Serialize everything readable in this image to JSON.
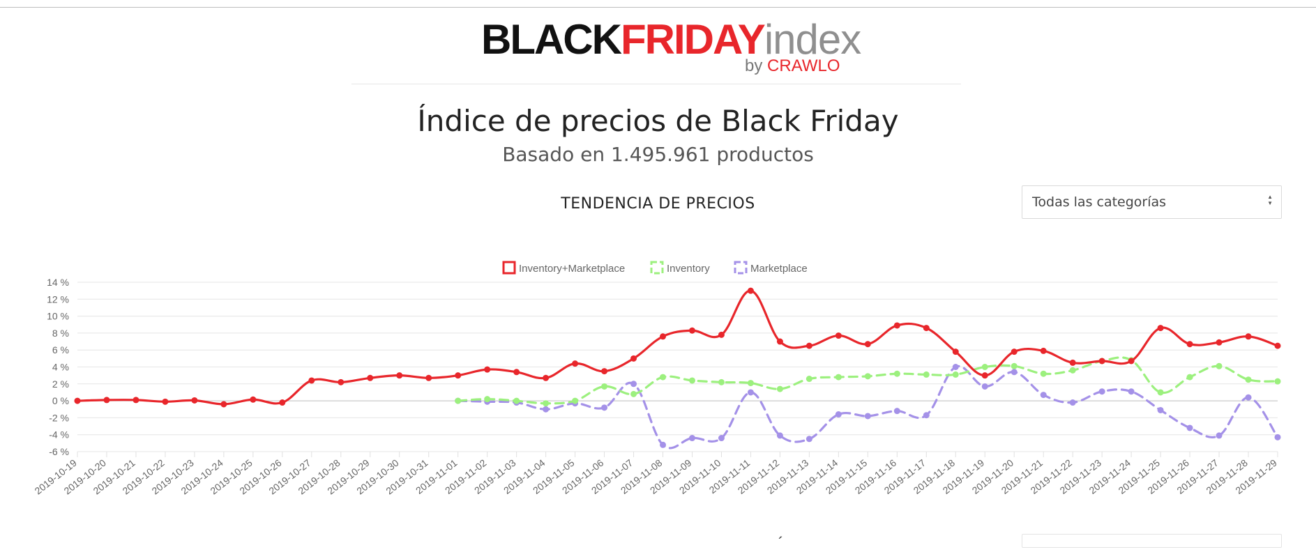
{
  "logo": {
    "black": "BLACK",
    "red": "FRIDAY",
    "grey": "index",
    "by": "by",
    "brand": "CRAWLO"
  },
  "page": {
    "title": "Índice de precios de Black Friday",
    "subtitle": "Basado en 1.495.961 productos",
    "section_title": "TENDENCIA DE PRECIOS",
    "next_section_glyph": "´"
  },
  "filter": {
    "selected": "Todas las categorías",
    "caret_up": "▲",
    "caret_down": "▼"
  },
  "chart_data": {
    "type": "line",
    "x": [
      "2019-10-19",
      "2019-10-20",
      "2019-10-21",
      "2019-10-22",
      "2019-10-23",
      "2019-10-24",
      "2019-10-25",
      "2019-10-26",
      "2019-10-27",
      "2019-10-28",
      "2019-10-29",
      "2019-10-30",
      "2019-10-31",
      "2019-11-01",
      "2019-11-02",
      "2019-11-03",
      "2019-11-04",
      "2019-11-05",
      "2019-11-06",
      "2019-11-07",
      "2019-11-08",
      "2019-11-09",
      "2019-11-10",
      "2019-11-11",
      "2019-11-12",
      "2019-11-13",
      "2019-11-14",
      "2019-11-15",
      "2019-11-16",
      "2019-11-17",
      "2019-11-18",
      "2019-11-19",
      "2019-11-20",
      "2019-11-21",
      "2019-11-22",
      "2019-11-23",
      "2019-11-24",
      "2019-11-25",
      "2019-11-26",
      "2019-11-27",
      "2019-11-28",
      "2019-11-29"
    ],
    "ylim": [
      -6,
      14
    ],
    "yticks": [
      -6,
      -4,
      -2,
      0,
      2,
      4,
      6,
      8,
      10,
      12,
      14
    ],
    "ytick_suffix": " %",
    "grid": true,
    "legend_position": "top-center",
    "series": [
      {
        "name": "Inventory+Marketplace",
        "color": "#e8262b",
        "dashed": false,
        "values": [
          0,
          0.1,
          0.1,
          -0.1,
          0.05,
          -0.4,
          0.15,
          -0.2,
          2.4,
          2.2,
          2.7,
          3.0,
          2.7,
          3.0,
          3.7,
          3.4,
          2.7,
          4.4,
          3.5,
          5.0,
          7.6,
          8.3,
          7.8,
          13.0,
          7.0,
          6.5,
          7.7,
          6.7,
          8.9,
          8.6,
          5.8,
          3.0,
          5.8,
          5.9,
          4.5,
          4.7,
          4.7,
          8.6,
          6.7,
          6.9,
          7.6,
          6.5
        ]
      },
      {
        "name": "Inventory",
        "color": "#9cf07e",
        "dashed": true,
        "values": [
          null,
          null,
          null,
          null,
          null,
          null,
          null,
          null,
          null,
          null,
          null,
          null,
          null,
          0.0,
          0.2,
          0.0,
          -0.3,
          0.0,
          1.7,
          0.8,
          2.8,
          2.4,
          2.2,
          2.1,
          1.4,
          2.6,
          2.8,
          2.9,
          3.2,
          3.1,
          3.1,
          4.0,
          4.1,
          3.2,
          3.6,
          4.7,
          4.8,
          1.0,
          2.8,
          4.1,
          2.5,
          2.3
        ]
      },
      {
        "name": "Marketplace",
        "color": "#a491e8",
        "dashed": true,
        "values": [
          null,
          null,
          null,
          null,
          null,
          null,
          null,
          null,
          null,
          null,
          null,
          null,
          null,
          0.0,
          -0.1,
          -0.2,
          -1.0,
          -0.3,
          -0.8,
          2.0,
          -5.2,
          -4.4,
          -4.4,
          1.0,
          -4.1,
          -4.5,
          -1.6,
          -1.8,
          -1.2,
          -1.7,
          4.0,
          1.7,
          3.4,
          0.7,
          -0.2,
          1.1,
          1.1,
          -1.1,
          -3.2,
          -4.1,
          0.4,
          -4.3
        ]
      }
    ]
  }
}
